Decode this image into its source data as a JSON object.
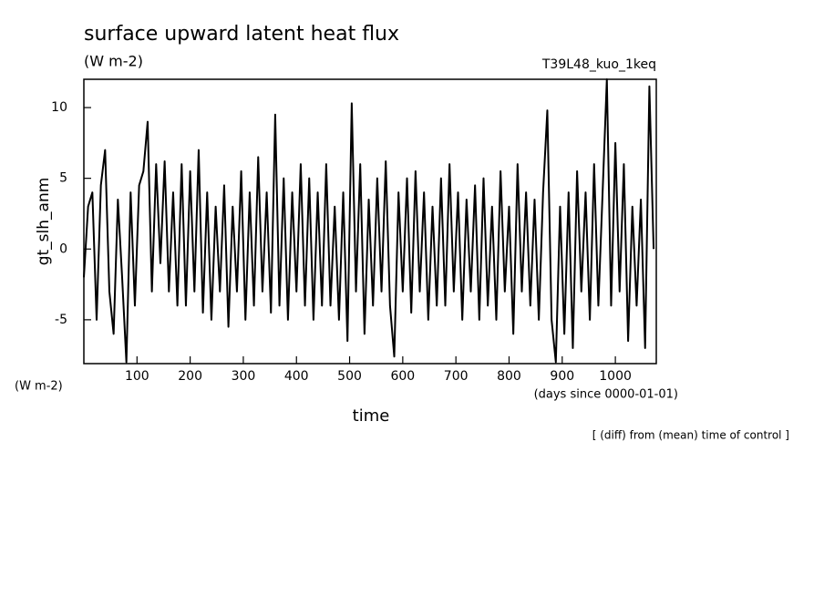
{
  "chart_data": {
    "type": "line",
    "title": "surface upward latent heat flux",
    "subtitle": "(W m-2)",
    "run_label": "T39L48_kuo_1keq",
    "y_axis_label": "gt_slh_anm",
    "y_unit_label": "(W m-2)",
    "x_axis_label": "time",
    "x_unit_label": "(days since 0000-01-01)",
    "footnote": "[ (diff) from (mean) time of control ]",
    "color": "#000000",
    "xlim": [
      0,
      1077
    ],
    "ylim": [
      -8.1,
      12
    ],
    "xticks": [
      100,
      200,
      300,
      400,
      500,
      600,
      700,
      800,
      900,
      1000
    ],
    "yticks": [
      -5,
      0,
      5,
      10
    ],
    "x": [
      0,
      8,
      16,
      24,
      32,
      40,
      48,
      56,
      64,
      72,
      80,
      88,
      96,
      104,
      112,
      120,
      128,
      136,
      144,
      152,
      160,
      168,
      176,
      184,
      192,
      200,
      208,
      216,
      224,
      232,
      240,
      248,
      256,
      264,
      272,
      280,
      288,
      296,
      304,
      312,
      320,
      328,
      336,
      344,
      352,
      360,
      368,
      376,
      384,
      392,
      400,
      408,
      416,
      424,
      432,
      440,
      448,
      456,
      464,
      472,
      480,
      488,
      496,
      504,
      512,
      520,
      528,
      536,
      544,
      552,
      560,
      568,
      576,
      584,
      592,
      600,
      608,
      616,
      624,
      632,
      640,
      648,
      656,
      664,
      672,
      680,
      688,
      696,
      704,
      712,
      720,
      728,
      736,
      744,
      752,
      760,
      768,
      776,
      784,
      792,
      800,
      808,
      816,
      824,
      832,
      840,
      848,
      856,
      864,
      872,
      880,
      888,
      896,
      904,
      912,
      920,
      928,
      936,
      944,
      952,
      960,
      968,
      976,
      984,
      992,
      1000,
      1008,
      1016,
      1024,
      1032,
      1040,
      1048,
      1056,
      1064,
      1072
    ],
    "values": [
      -2,
      3,
      4,
      -5,
      4.5,
      7,
      -3,
      -6,
      3.5,
      -2,
      -8,
      4,
      -4,
      4.5,
      5.5,
      9,
      -3,
      6,
      -1,
      6.2,
      -3,
      4,
      -4,
      6,
      -4,
      5.5,
      -3,
      7,
      -4.5,
      4,
      -5,
      3,
      -3,
      4.5,
      -5.5,
      3,
      -3,
      5.5,
      -5,
      4,
      -4,
      6.5,
      -3,
      4,
      -4.5,
      9.5,
      -4,
      5,
      -5,
      4,
      -3,
      6,
      -4,
      5,
      -5,
      4,
      -4,
      6,
      -4,
      3,
      -5,
      4,
      -6.5,
      10.3,
      -3,
      6,
      -6,
      3.5,
      -4,
      5,
      -3,
      6.2,
      -4,
      -7.6,
      4,
      -3,
      5,
      -4.5,
      5.5,
      -3,
      4,
      -5,
      3,
      -4,
      5,
      -4,
      6,
      -3,
      4,
      -5,
      3.5,
      -3,
      4.5,
      -5,
      5,
      -4,
      3,
      -5,
      5.5,
      -3,
      3,
      -6,
      6,
      -3,
      4,
      -4,
      3.5,
      -5,
      4,
      9.8,
      -5,
      -8,
      3,
      -6,
      4,
      -7,
      5.5,
      -3,
      4,
      -5,
      6,
      -4,
      4,
      12,
      -4,
      7.5,
      -3,
      6,
      -6.5,
      3,
      -4,
      3.5,
      -7,
      11.5,
      0
    ]
  }
}
